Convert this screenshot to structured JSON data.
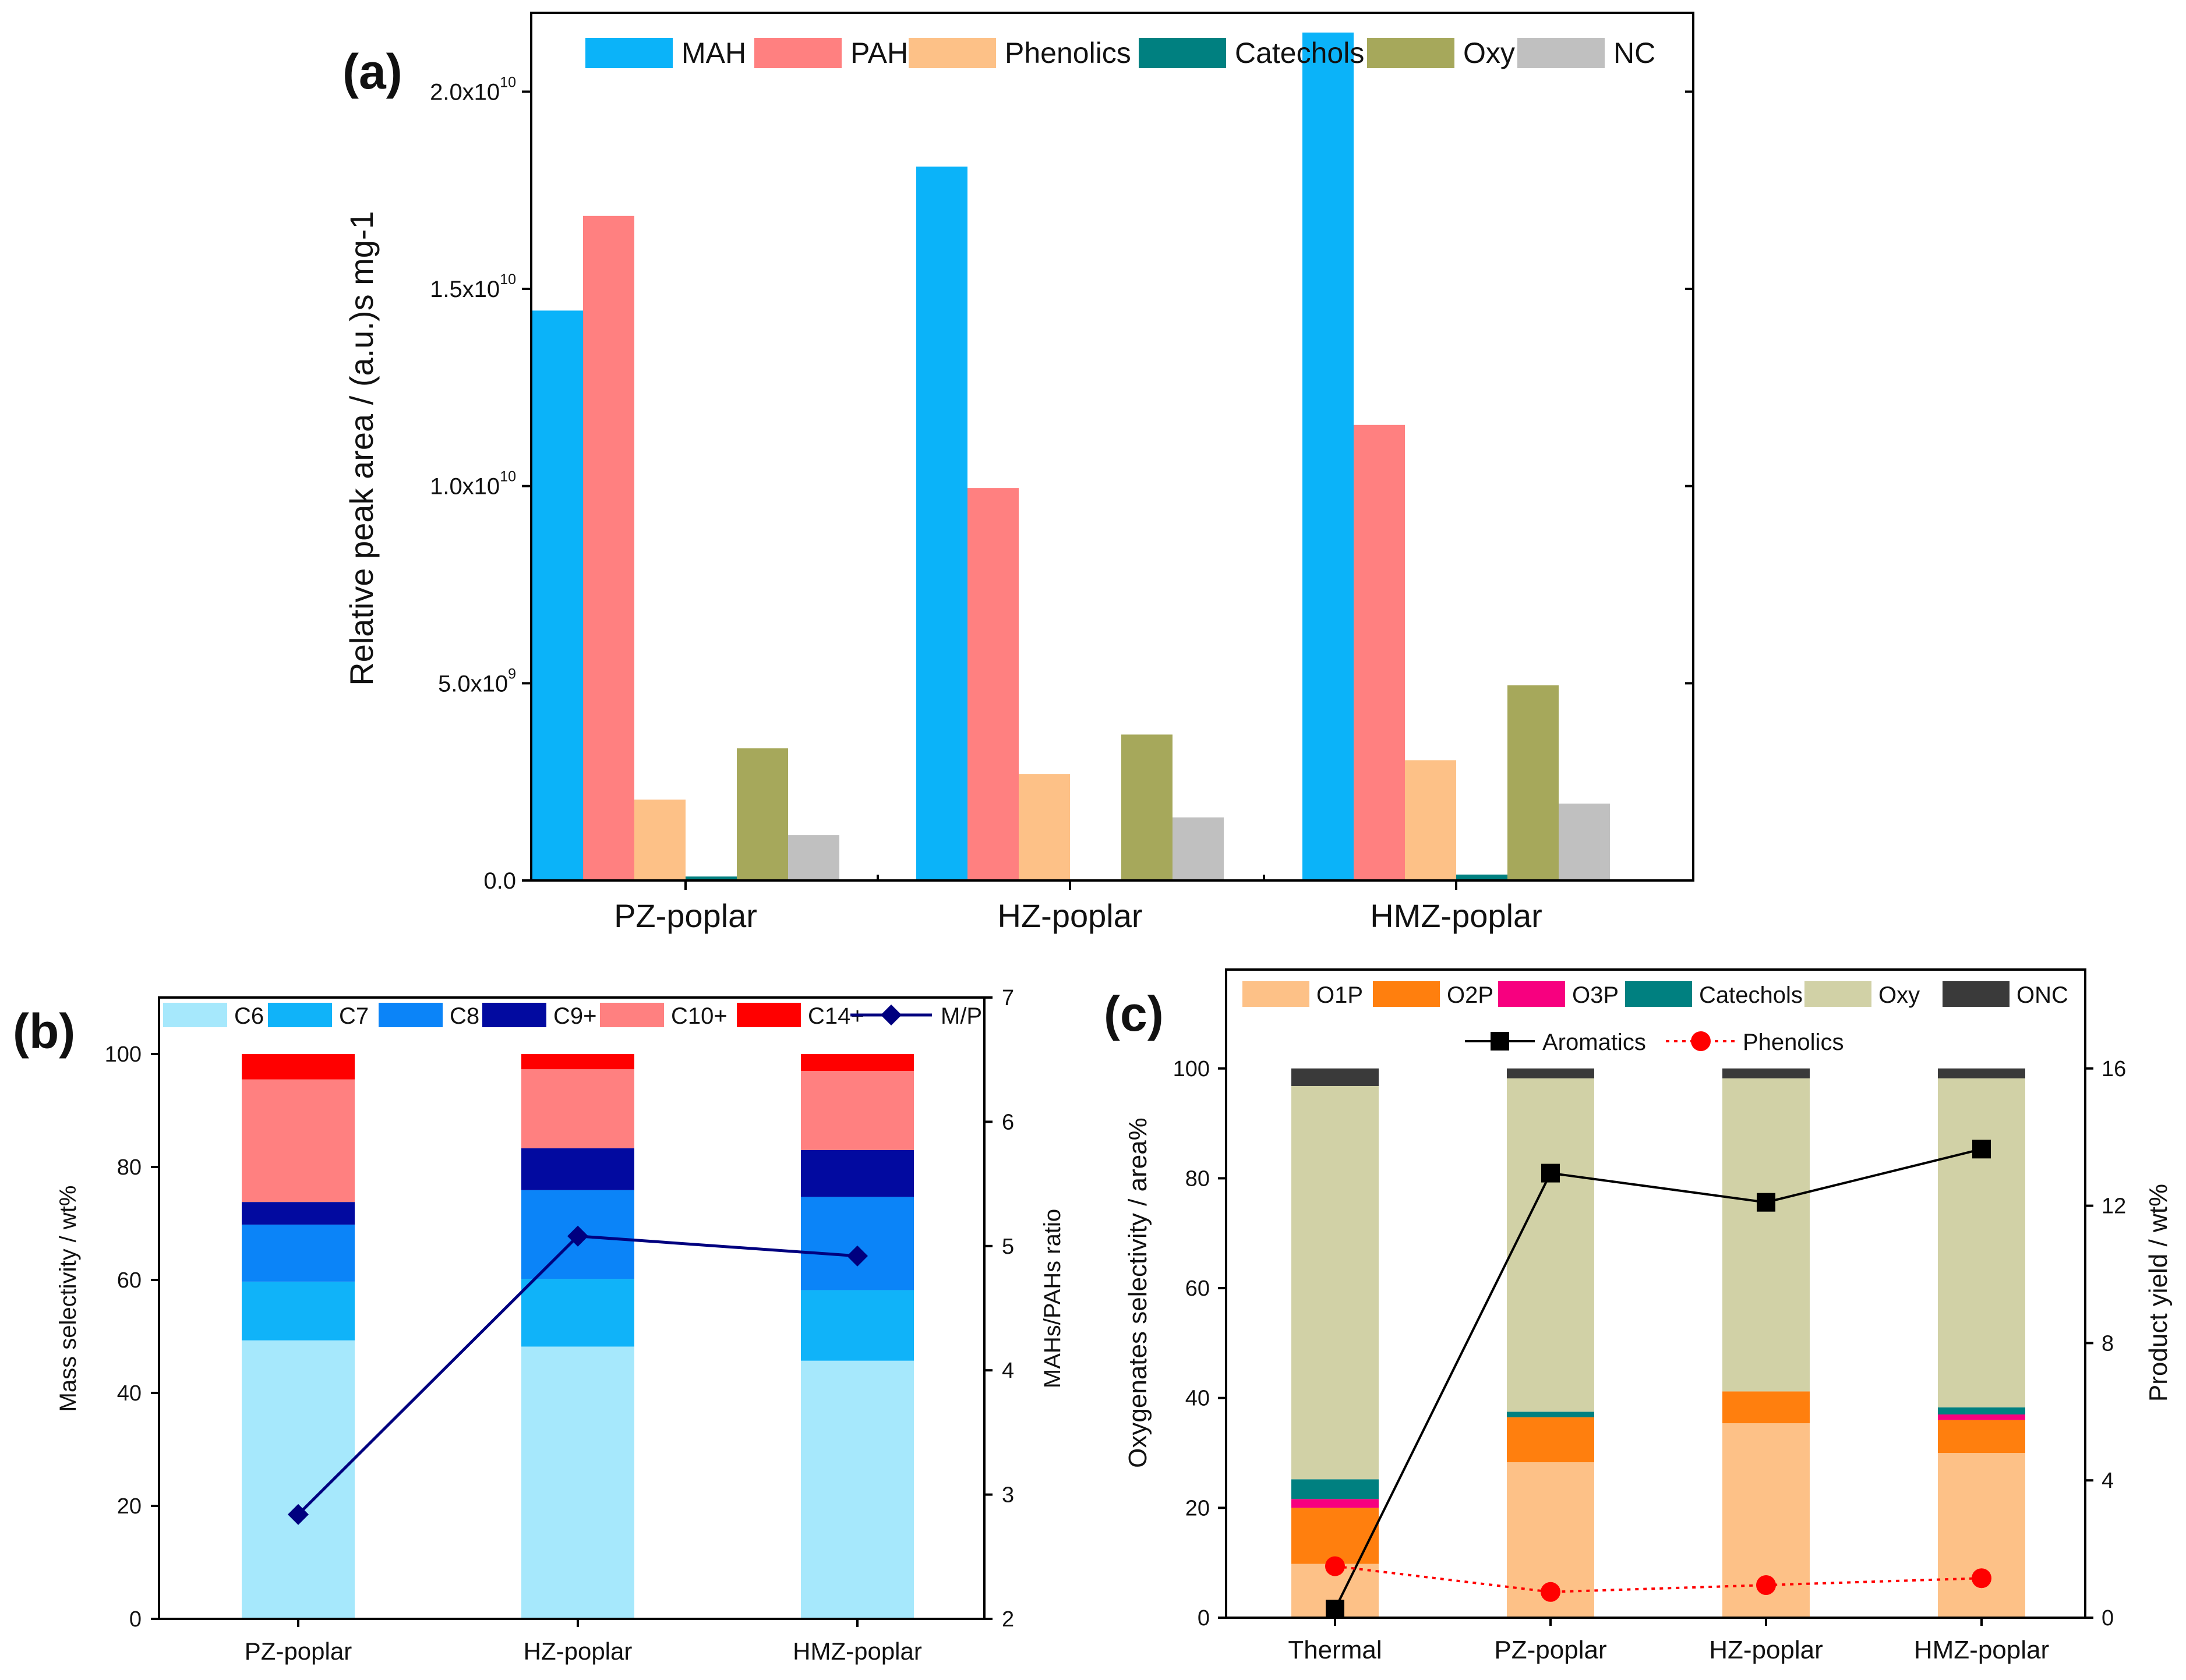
{
  "colors": {
    "MAH": "#0BB3F9",
    "PAH": "#FF8080",
    "Phenolics_a": "#FDC187",
    "Catechols": "#008080",
    "Oxy_a": "#A6A85B",
    "NC": "#C0C0C0",
    "C6": "#A6E8FC",
    "C7": "#10B3F9",
    "C8": "#0B84F8",
    "C9+": "#020AA0",
    "C10+": "#FF8080",
    "C14+": "#FF0000",
    "MP_line": "#00007F",
    "O1P": "#FDC187",
    "O2P": "#FF7F0E",
    "O3P": "#F7007F",
    "Oxy_c": "#D1D1A6",
    "ONC": "#3A3A3A",
    "Aromatics": "#000000",
    "Phenolics_line": "#FF0000"
  },
  "chart_data": [
    {
      "panel": "(a)",
      "type": "bar",
      "ylabel": "Relative peak area / (a.u.)s mg-1",
      "xlabel": "",
      "ylim": [
        0,
        22000000000.0
      ],
      "ytick_values": [
        0,
        5000000000.0,
        10000000000.0,
        15000000000.0,
        20000000000.0
      ],
      "ytick_labels": [
        {
          "base": "0.0",
          "exp": ""
        },
        {
          "base": "5.0x10",
          "exp": "9"
        },
        {
          "base": "1.0x10",
          "exp": "10"
        },
        {
          "base": "1.5x10",
          "exp": "10"
        },
        {
          "base": "2.0x10",
          "exp": "10"
        }
      ],
      "categories": [
        "PZ-poplar",
        "HZ-poplar",
        "HMZ-poplar"
      ],
      "series": [
        {
          "name": "MAH",
          "color_key": "MAH",
          "values": [
            14450000000.0,
            18100000000.0,
            21500000000.0
          ]
        },
        {
          "name": "PAH",
          "color_key": "PAH",
          "values": [
            16850000000.0,
            9950000000.0,
            11550000000.0
          ]
        },
        {
          "name": "Phenolics",
          "color_key": "Phenolics_a",
          "values": [
            2050000000.0,
            2700000000.0,
            3050000000.0
          ]
        },
        {
          "name": "Catechols",
          "color_key": "Catechols",
          "values": [
            100000000.0,
            0,
            150000000.0
          ]
        },
        {
          "name": "Oxy",
          "color_key": "Oxy_a",
          "values": [
            3350000000.0,
            3700000000.0,
            4950000000.0
          ]
        },
        {
          "name": "NC",
          "color_key": "NC",
          "values": [
            1150000000.0,
            1600000000.0,
            1950000000.0
          ]
        }
      ],
      "legend": "top"
    },
    {
      "panel": "(b)",
      "type": "bar",
      "stacked": true,
      "ylabel": "Mass selectivity / wt%",
      "y2label": "MAHs/PAHs ratio",
      "ylim": [
        0,
        110
      ],
      "y2lim": [
        2,
        7
      ],
      "yticks": [
        0,
        20,
        40,
        60,
        80,
        100
      ],
      "y2ticks": [
        2,
        3,
        4,
        5,
        6,
        7
      ],
      "categories": [
        "PZ-poplar",
        "HZ-poplar",
        "HMZ-poplar"
      ],
      "series": [
        {
          "name": "C6",
          "color_key": "C6",
          "values": [
            49.3,
            48.2,
            45.7
          ]
        },
        {
          "name": "C7",
          "color_key": "C7",
          "values": [
            10.4,
            12.0,
            12.5
          ]
        },
        {
          "name": "C8",
          "color_key": "C8",
          "values": [
            10.1,
            15.7,
            16.5
          ]
        },
        {
          "name": "C9+",
          "color_key": "C9+",
          "values": [
            4.0,
            7.4,
            8.3
          ]
        },
        {
          "name": "C10+",
          "color_key": "C10+",
          "values": [
            21.7,
            14.0,
            14.0
          ]
        },
        {
          "name": "C14+",
          "color_key": "C14+",
          "values": [
            4.5,
            2.7,
            3.0
          ]
        }
      ],
      "line": {
        "name": "M/P",
        "color_key": "MP_line",
        "values": [
          2.84,
          5.08,
          4.92
        ]
      },
      "legend": "top"
    },
    {
      "panel": "(c)",
      "type": "bar",
      "stacked": true,
      "ylabel": "Oxygenates selectivity / area%",
      "y2label": "Product yield / wt%",
      "ylim": [
        0,
        118
      ],
      "y2lim": [
        0,
        18.88
      ],
      "yticks": [
        0,
        20,
        40,
        60,
        80,
        100
      ],
      "y2ticks": [
        0,
        4,
        8,
        12,
        16
      ],
      "categories": [
        "Thermal",
        "PZ-poplar",
        "HZ-poplar",
        "HMZ-poplar"
      ],
      "series": [
        {
          "name": "O1P",
          "color_key": "O1P",
          "values": [
            9.8,
            28.3,
            35.4,
            30.0
          ]
        },
        {
          "name": "O2P",
          "color_key": "O2P",
          "values": [
            10.2,
            8.2,
            5.8,
            6.0
          ]
        },
        {
          "name": "O3P",
          "color_key": "O3P",
          "values": [
            1.6,
            0,
            0,
            1.0
          ]
        },
        {
          "name": "Catechols",
          "color_key": "Catechols",
          "values": [
            3.6,
            1.0,
            0,
            1.3
          ]
        },
        {
          "name": "Oxy",
          "color_key": "Oxy_c",
          "values": [
            71.6,
            60.7,
            57.0,
            59.9
          ]
        },
        {
          "name": "ONC",
          "color_key": "ONC",
          "values": [
            3.2,
            1.8,
            1.8,
            1.8
          ]
        }
      ],
      "lines": [
        {
          "name": "Aromatics",
          "color_key": "Aromatics",
          "marker": "square",
          "style": "solid",
          "values": [
            0.25,
            12.95,
            12.1,
            13.65
          ]
        },
        {
          "name": "Phenolics",
          "color_key": "Phenolics_line",
          "marker": "circle",
          "style": "dotted",
          "values": [
            1.5,
            0.75,
            0.95,
            1.15
          ]
        }
      ],
      "legend": "top"
    }
  ]
}
